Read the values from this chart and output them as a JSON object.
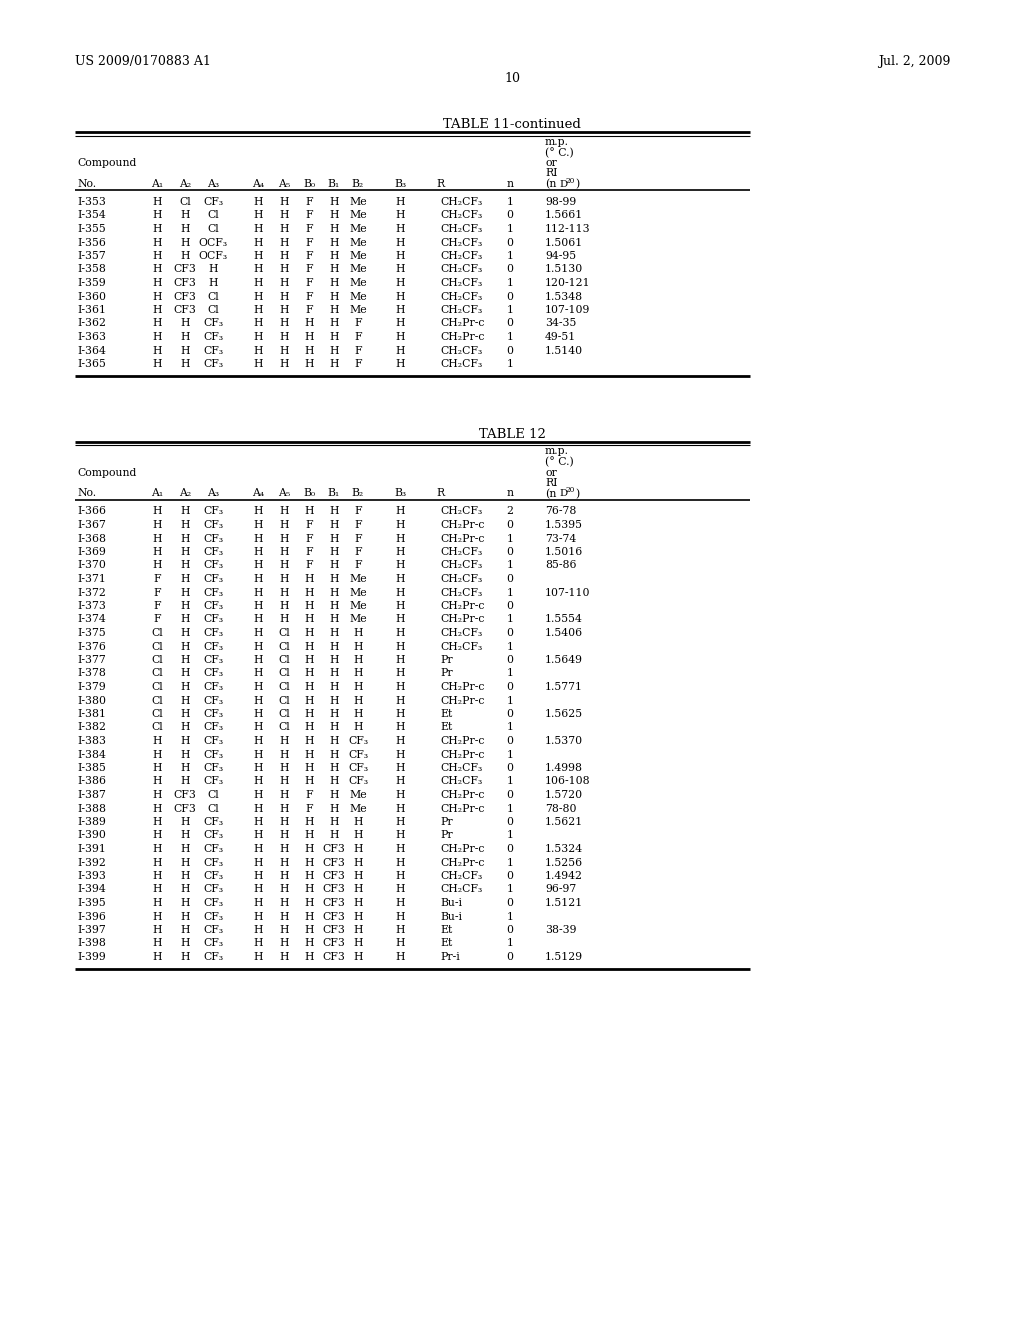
{
  "page_header_left": "US 2009/0170883 A1",
  "page_header_right": "Jul. 2, 2009",
  "page_number": "10",
  "table11_title": "TABLE 11-continued",
  "table12_title": "TABLE 12",
  "table11_data": [
    [
      "I-353",
      "H",
      "Cl",
      "CF3",
      "H",
      "H",
      "F",
      "H",
      "Me",
      "H",
      "CH2CF3",
      "1",
      "98-99"
    ],
    [
      "I-354",
      "H",
      "H",
      "Cl",
      "H",
      "H",
      "F",
      "H",
      "Me",
      "H",
      "CH2CF3",
      "0",
      "1.5661"
    ],
    [
      "I-355",
      "H",
      "H",
      "Cl",
      "H",
      "H",
      "F",
      "H",
      "Me",
      "H",
      "CH2CF3",
      "1",
      "112-113"
    ],
    [
      "I-356",
      "H",
      "H",
      "OCF3",
      "H",
      "H",
      "F",
      "H",
      "Me",
      "H",
      "CH2CF3",
      "0",
      "1.5061"
    ],
    [
      "I-357",
      "H",
      "H",
      "OCF3",
      "H",
      "H",
      "F",
      "H",
      "Me",
      "H",
      "CH2CF3",
      "1",
      "94-95"
    ],
    [
      "I-358",
      "H",
      "CF3",
      "H",
      "H",
      "H",
      "F",
      "H",
      "Me",
      "H",
      "CH2CF3",
      "0",
      "1.5130"
    ],
    [
      "I-359",
      "H",
      "CF3",
      "H",
      "H",
      "H",
      "F",
      "H",
      "Me",
      "H",
      "CH2CF3",
      "1",
      "120-121"
    ],
    [
      "I-360",
      "H",
      "CF3",
      "Cl",
      "H",
      "H",
      "F",
      "H",
      "Me",
      "H",
      "CH2CF3",
      "0",
      "1.5348"
    ],
    [
      "I-361",
      "H",
      "CF3",
      "Cl",
      "H",
      "H",
      "F",
      "H",
      "Me",
      "H",
      "CH2CF3",
      "1",
      "107-109"
    ],
    [
      "I-362",
      "H",
      "H",
      "CF3",
      "H",
      "H",
      "H",
      "H",
      "F",
      "H",
      "CH2Pr-c",
      "0",
      "34-35"
    ],
    [
      "I-363",
      "H",
      "H",
      "CF3",
      "H",
      "H",
      "H",
      "H",
      "F",
      "H",
      "CH2Pr-c",
      "1",
      "49-51"
    ],
    [
      "I-364",
      "H",
      "H",
      "CF3",
      "H",
      "H",
      "H",
      "H",
      "F",
      "H",
      "CH2CF3",
      "0",
      "1.5140"
    ],
    [
      "I-365",
      "H",
      "H",
      "CF3",
      "H",
      "H",
      "H",
      "H",
      "F",
      "H",
      "CH2CF3",
      "1",
      ""
    ]
  ],
  "table12_data": [
    [
      "I-366",
      "H",
      "H",
      "CF3",
      "H",
      "H",
      "H",
      "H",
      "F",
      "H",
      "CH2CF3",
      "2",
      "76-78"
    ],
    [
      "I-367",
      "H",
      "H",
      "CF3",
      "H",
      "H",
      "F",
      "H",
      "F",
      "H",
      "CH2Pr-c",
      "0",
      "1.5395"
    ],
    [
      "I-368",
      "H",
      "H",
      "CF3",
      "H",
      "H",
      "F",
      "H",
      "F",
      "H",
      "CH2Pr-c",
      "1",
      "73-74"
    ],
    [
      "I-369",
      "H",
      "H",
      "CF3",
      "H",
      "H",
      "F",
      "H",
      "F",
      "H",
      "CH2CF3",
      "0",
      "1.5016"
    ],
    [
      "I-370",
      "H",
      "H",
      "CF3",
      "H",
      "H",
      "F",
      "H",
      "F",
      "H",
      "CH2CF3",
      "1",
      "85-86"
    ],
    [
      "I-371",
      "F",
      "H",
      "CF3",
      "H",
      "H",
      "H",
      "H",
      "Me",
      "H",
      "CH2CF3",
      "0",
      ""
    ],
    [
      "I-372",
      "F",
      "H",
      "CF3",
      "H",
      "H",
      "H",
      "H",
      "Me",
      "H",
      "CH2CF3",
      "1",
      "107-110"
    ],
    [
      "I-373",
      "F",
      "H",
      "CF3",
      "H",
      "H",
      "H",
      "H",
      "Me",
      "H",
      "CH2Pr-c",
      "0",
      ""
    ],
    [
      "I-374",
      "F",
      "H",
      "CF3",
      "H",
      "H",
      "H",
      "H",
      "Me",
      "H",
      "CH2Pr-c",
      "1",
      "1.5554"
    ],
    [
      "I-375",
      "Cl",
      "H",
      "CF3",
      "H",
      "Cl",
      "H",
      "H",
      "H",
      "H",
      "CH2CF3",
      "0",
      "1.5406"
    ],
    [
      "I-376",
      "Cl",
      "H",
      "CF3",
      "H",
      "Cl",
      "H",
      "H",
      "H",
      "H",
      "CH2CF3",
      "1",
      ""
    ],
    [
      "I-377",
      "Cl",
      "H",
      "CF3",
      "H",
      "Cl",
      "H",
      "H",
      "H",
      "H",
      "Pr",
      "0",
      "1.5649"
    ],
    [
      "I-378",
      "Cl",
      "H",
      "CF3",
      "H",
      "Cl",
      "H",
      "H",
      "H",
      "H",
      "Pr",
      "1",
      ""
    ],
    [
      "I-379",
      "Cl",
      "H",
      "CF3",
      "H",
      "Cl",
      "H",
      "H",
      "H",
      "H",
      "CH2Pr-c",
      "0",
      "1.5771"
    ],
    [
      "I-380",
      "Cl",
      "H",
      "CF3",
      "H",
      "Cl",
      "H",
      "H",
      "H",
      "H",
      "CH2Pr-c",
      "1",
      ""
    ],
    [
      "I-381",
      "Cl",
      "H",
      "CF3",
      "H",
      "Cl",
      "H",
      "H",
      "H",
      "H",
      "Et",
      "0",
      "1.5625"
    ],
    [
      "I-382",
      "Cl",
      "H",
      "CF3",
      "H",
      "Cl",
      "H",
      "H",
      "H",
      "H",
      "Et",
      "1",
      ""
    ],
    [
      "I-383",
      "H",
      "H",
      "CF3",
      "H",
      "H",
      "H",
      "H",
      "CF3",
      "H",
      "CH2Pr-c",
      "0",
      "1.5370"
    ],
    [
      "I-384",
      "H",
      "H",
      "CF3",
      "H",
      "H",
      "H",
      "H",
      "CF3",
      "H",
      "CH2Pr-c",
      "1",
      ""
    ],
    [
      "I-385",
      "H",
      "H",
      "CF3",
      "H",
      "H",
      "H",
      "H",
      "CF3",
      "H",
      "CH2CF3",
      "0",
      "1.4998"
    ],
    [
      "I-386",
      "H",
      "H",
      "CF3",
      "H",
      "H",
      "H",
      "H",
      "CF3",
      "H",
      "CH2CF3",
      "1",
      "106-108"
    ],
    [
      "I-387",
      "H",
      "CF3",
      "Cl",
      "H",
      "H",
      "F",
      "H",
      "Me",
      "H",
      "CH2Pr-c",
      "0",
      "1.5720"
    ],
    [
      "I-388",
      "H",
      "CF3",
      "Cl",
      "H",
      "H",
      "F",
      "H",
      "Me",
      "H",
      "CH2Pr-c",
      "1",
      "78-80"
    ],
    [
      "I-389",
      "H",
      "H",
      "CF3",
      "H",
      "H",
      "H",
      "H",
      "H",
      "H",
      "Pr",
      "0",
      "1.5621"
    ],
    [
      "I-390",
      "H",
      "H",
      "CF3",
      "H",
      "H",
      "H",
      "H",
      "H",
      "H",
      "Pr",
      "1",
      ""
    ],
    [
      "I-391",
      "H",
      "H",
      "CF3",
      "H",
      "H",
      "H",
      "CF3",
      "H",
      "H",
      "CH2Pr-c",
      "0",
      "1.5324"
    ],
    [
      "I-392",
      "H",
      "H",
      "CF3",
      "H",
      "H",
      "H",
      "CF3",
      "H",
      "H",
      "CH2Pr-c",
      "1",
      "1.5256"
    ],
    [
      "I-393",
      "H",
      "H",
      "CF3",
      "H",
      "H",
      "H",
      "CF3",
      "H",
      "H",
      "CH2CF3",
      "0",
      "1.4942"
    ],
    [
      "I-394",
      "H",
      "H",
      "CF3",
      "H",
      "H",
      "H",
      "CF3",
      "H",
      "H",
      "CH2CF3",
      "1",
      "96-97"
    ],
    [
      "I-395",
      "H",
      "H",
      "CF3",
      "H",
      "H",
      "H",
      "CF3",
      "H",
      "H",
      "Bu-i",
      "0",
      "1.5121"
    ],
    [
      "I-396",
      "H",
      "H",
      "CF3",
      "H",
      "H",
      "H",
      "CF3",
      "H",
      "H",
      "Bu-i",
      "1",
      ""
    ],
    [
      "I-397",
      "H",
      "H",
      "CF3",
      "H",
      "H",
      "H",
      "CF3",
      "H",
      "H",
      "Et",
      "0",
      "38-39"
    ],
    [
      "I-398",
      "H",
      "H",
      "CF3",
      "H",
      "H",
      "H",
      "CF3",
      "H",
      "H",
      "Et",
      "1",
      ""
    ],
    [
      "I-399",
      "H",
      "H",
      "CF3",
      "H",
      "H",
      "H",
      "CF3",
      "H",
      "H",
      "Pr-i",
      "0",
      "1.5129"
    ]
  ],
  "bg_color": "#ffffff",
  "text_color": "#000000"
}
